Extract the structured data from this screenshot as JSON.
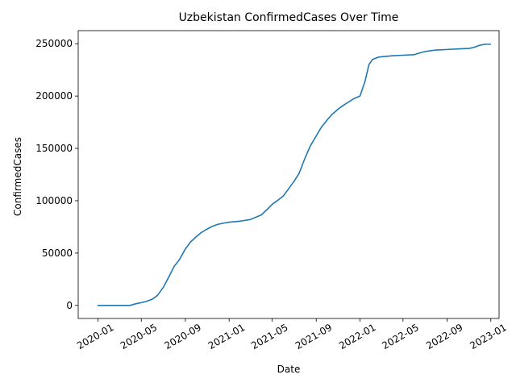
{
  "chart_data": {
    "type": "line",
    "title": "Uzbekistan  ConfirmedCases Over Time",
    "xlabel": "Date",
    "ylabel": "ConfirmedCases",
    "xlim": [
      "2019-11-07",
      "2023-01-24"
    ],
    "ylim": [
      -12500,
      262500
    ],
    "x_ticks": [
      {
        "label": "2020-01",
        "date": "2020-01-01"
      },
      {
        "label": "2020-05",
        "date": "2020-05-01"
      },
      {
        "label": "2020-09",
        "date": "2020-09-01"
      },
      {
        "label": "2021-01",
        "date": "2021-01-01"
      },
      {
        "label": "2021-05",
        "date": "2021-05-01"
      },
      {
        "label": "2021-09",
        "date": "2021-09-01"
      },
      {
        "label": "2022-01",
        "date": "2022-01-01"
      },
      {
        "label": "2022-05",
        "date": "2022-05-01"
      },
      {
        "label": "2022-09",
        "date": "2022-09-01"
      },
      {
        "label": "2023-01",
        "date": "2023-01-01"
      }
    ],
    "y_ticks": [
      {
        "label": "0",
        "value": 0
      },
      {
        "label": "50000",
        "value": 50000
      },
      {
        "label": "100000",
        "value": 100000
      },
      {
        "label": "150000",
        "value": 150000
      },
      {
        "label": "200000",
        "value": 200000
      },
      {
        "label": "250000",
        "value": 250000
      }
    ],
    "grid": false,
    "color": "#1f77b4",
    "series": [
      {
        "x": [
          "2020-01-01",
          "2020-02-01",
          "2020-03-01",
          "2020-03-31",
          "2020-04-15",
          "2020-05-01",
          "2020-05-15",
          "2020-06-01",
          "2020-06-15",
          "2020-07-01",
          "2020-07-15",
          "2020-08-01",
          "2020-08-15",
          "2020-09-01",
          "2020-09-15",
          "2020-10-01",
          "2020-10-15",
          "2020-11-01",
          "2020-11-15",
          "2020-12-01",
          "2020-12-15",
          "2021-01-01",
          "2021-02-01",
          "2021-03-01",
          "2021-04-01",
          "2021-04-15",
          "2021-05-01",
          "2021-05-15",
          "2021-06-01",
          "2021-06-15",
          "2021-07-01",
          "2021-07-15",
          "2021-08-01",
          "2021-08-15",
          "2021-09-01",
          "2021-09-15",
          "2021-10-01",
          "2021-10-15",
          "2021-11-01",
          "2021-11-15",
          "2021-12-01",
          "2021-12-15",
          "2022-01-01",
          "2022-01-15",
          "2022-01-26",
          "2022-02-05",
          "2022-02-20",
          "2022-03-01",
          "2022-04-01",
          "2022-05-01",
          "2022-06-01",
          "2022-06-15",
          "2022-07-01",
          "2022-08-01",
          "2022-09-01",
          "2022-10-01",
          "2022-11-01",
          "2022-11-15",
          "2022-12-01",
          "2022-12-15",
          "2022-12-31"
        ],
        "values": [
          0,
          0,
          0,
          0,
          1500,
          2600,
          3800,
          6000,
          9500,
          17000,
          26000,
          37500,
          43500,
          54000,
          60500,
          65500,
          69500,
          73000,
          75500,
          77500,
          78500,
          79500,
          80500,
          82000,
          86500,
          91000,
          96500,
          100000,
          104500,
          111000,
          118500,
          126000,
          141000,
          152000,
          162000,
          170000,
          177000,
          182500,
          187500,
          191000,
          194500,
          197500,
          200000,
          214000,
          230000,
          235000,
          237000,
          237500,
          238500,
          239000,
          239500,
          241000,
          242500,
          244000,
          244500,
          245000,
          245500,
          246500,
          248500,
          249500,
          249500
        ]
      }
    ]
  }
}
